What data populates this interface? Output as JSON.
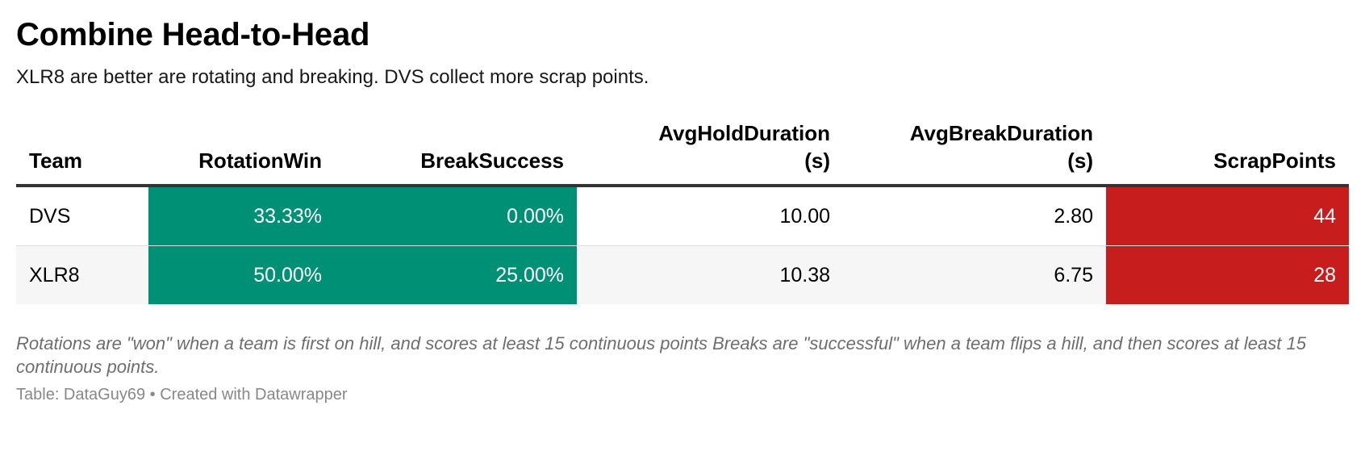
{
  "title": "Combine Head-to-Head",
  "subtitle": "XLR8 are better are rotating and breaking. DVS collect more scrap points.",
  "colors": {
    "highlight_green": "#009076",
    "highlight_red": "#c71e1d",
    "header_rule": "#333333",
    "alt_row": "#f6f6f6"
  },
  "chart_data": {
    "type": "table",
    "columns": [
      {
        "key": "team",
        "label_line1": "Team",
        "label_line2": "",
        "align": "left"
      },
      {
        "key": "rotation_win",
        "label_line1": "RotationWin",
        "label_line2": "",
        "align": "right",
        "highlight": "green"
      },
      {
        "key": "break_success",
        "label_line1": "BreakSuccess",
        "label_line2": "",
        "align": "right",
        "highlight": "green"
      },
      {
        "key": "avg_hold",
        "label_line1": "AvgHoldDuration",
        "label_line2": "(s)",
        "align": "right"
      },
      {
        "key": "avg_break",
        "label_line1": "AvgBreakDuration",
        "label_line2": "(s)",
        "align": "right"
      },
      {
        "key": "scrap",
        "label_line1": "ScrapPoints",
        "label_line2": "",
        "align": "right",
        "highlight": "red"
      }
    ],
    "rows": [
      {
        "team": "DVS",
        "rotation_win": "33.33%",
        "break_success": "0.00%",
        "avg_hold": "10.00",
        "avg_break": "2.80",
        "scrap": "44"
      },
      {
        "team": "XLR8",
        "rotation_win": "50.00%",
        "break_success": "25.00%",
        "avg_hold": "10.38",
        "avg_break": "6.75",
        "scrap": "28"
      }
    ]
  },
  "notes": "Rotations are \"won\" when a team is first on hill, and scores at least 15 continuous points Breaks are \"successful\" when a team flips a hill, and then scores at least 15 continuous points.",
  "source": "Table: DataGuy69 • Created with Datawrapper"
}
